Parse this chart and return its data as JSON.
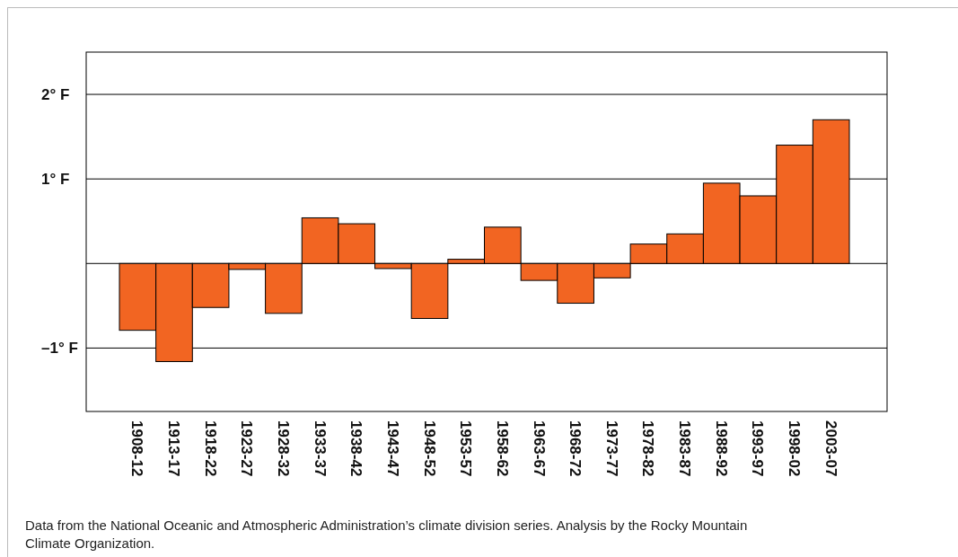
{
  "chart_data": {
    "type": "bar",
    "categories": [
      "1908-12",
      "1913-17",
      "1918-22",
      "1923-27",
      "1928-32",
      "1933-37",
      "1938-42",
      "1943-47",
      "1948-52",
      "1953-57",
      "1958-62",
      "1963-67",
      "1968-72",
      "1973-77",
      "1978-82",
      "1983-87",
      "1988-92",
      "1993-97",
      "1998-02",
      "2003-07"
    ],
    "values": [
      -0.79,
      -1.16,
      -0.52,
      -0.07,
      -0.59,
      0.54,
      0.47,
      -0.06,
      -0.65,
      0.05,
      0.43,
      -0.2,
      -0.47,
      -0.17,
      0.23,
      0.35,
      0.95,
      0.8,
      1.4,
      1.7
    ],
    "color": "#f26522",
    "ylim": [
      -1.75,
      2.5
    ],
    "yticks": [
      {
        "value": -1,
        "label": "–1° F"
      },
      {
        "value": 0,
        "label": null
      },
      {
        "value": 1,
        "label": "1° F"
      },
      {
        "value": 2,
        "label": "2° F"
      }
    ],
    "grid": "y",
    "annotations": [
      "Data from the National Oceanic and Atmospheric Administration’s climate division series. Analysis by the Rocky Mountain Climate Organization."
    ]
  }
}
